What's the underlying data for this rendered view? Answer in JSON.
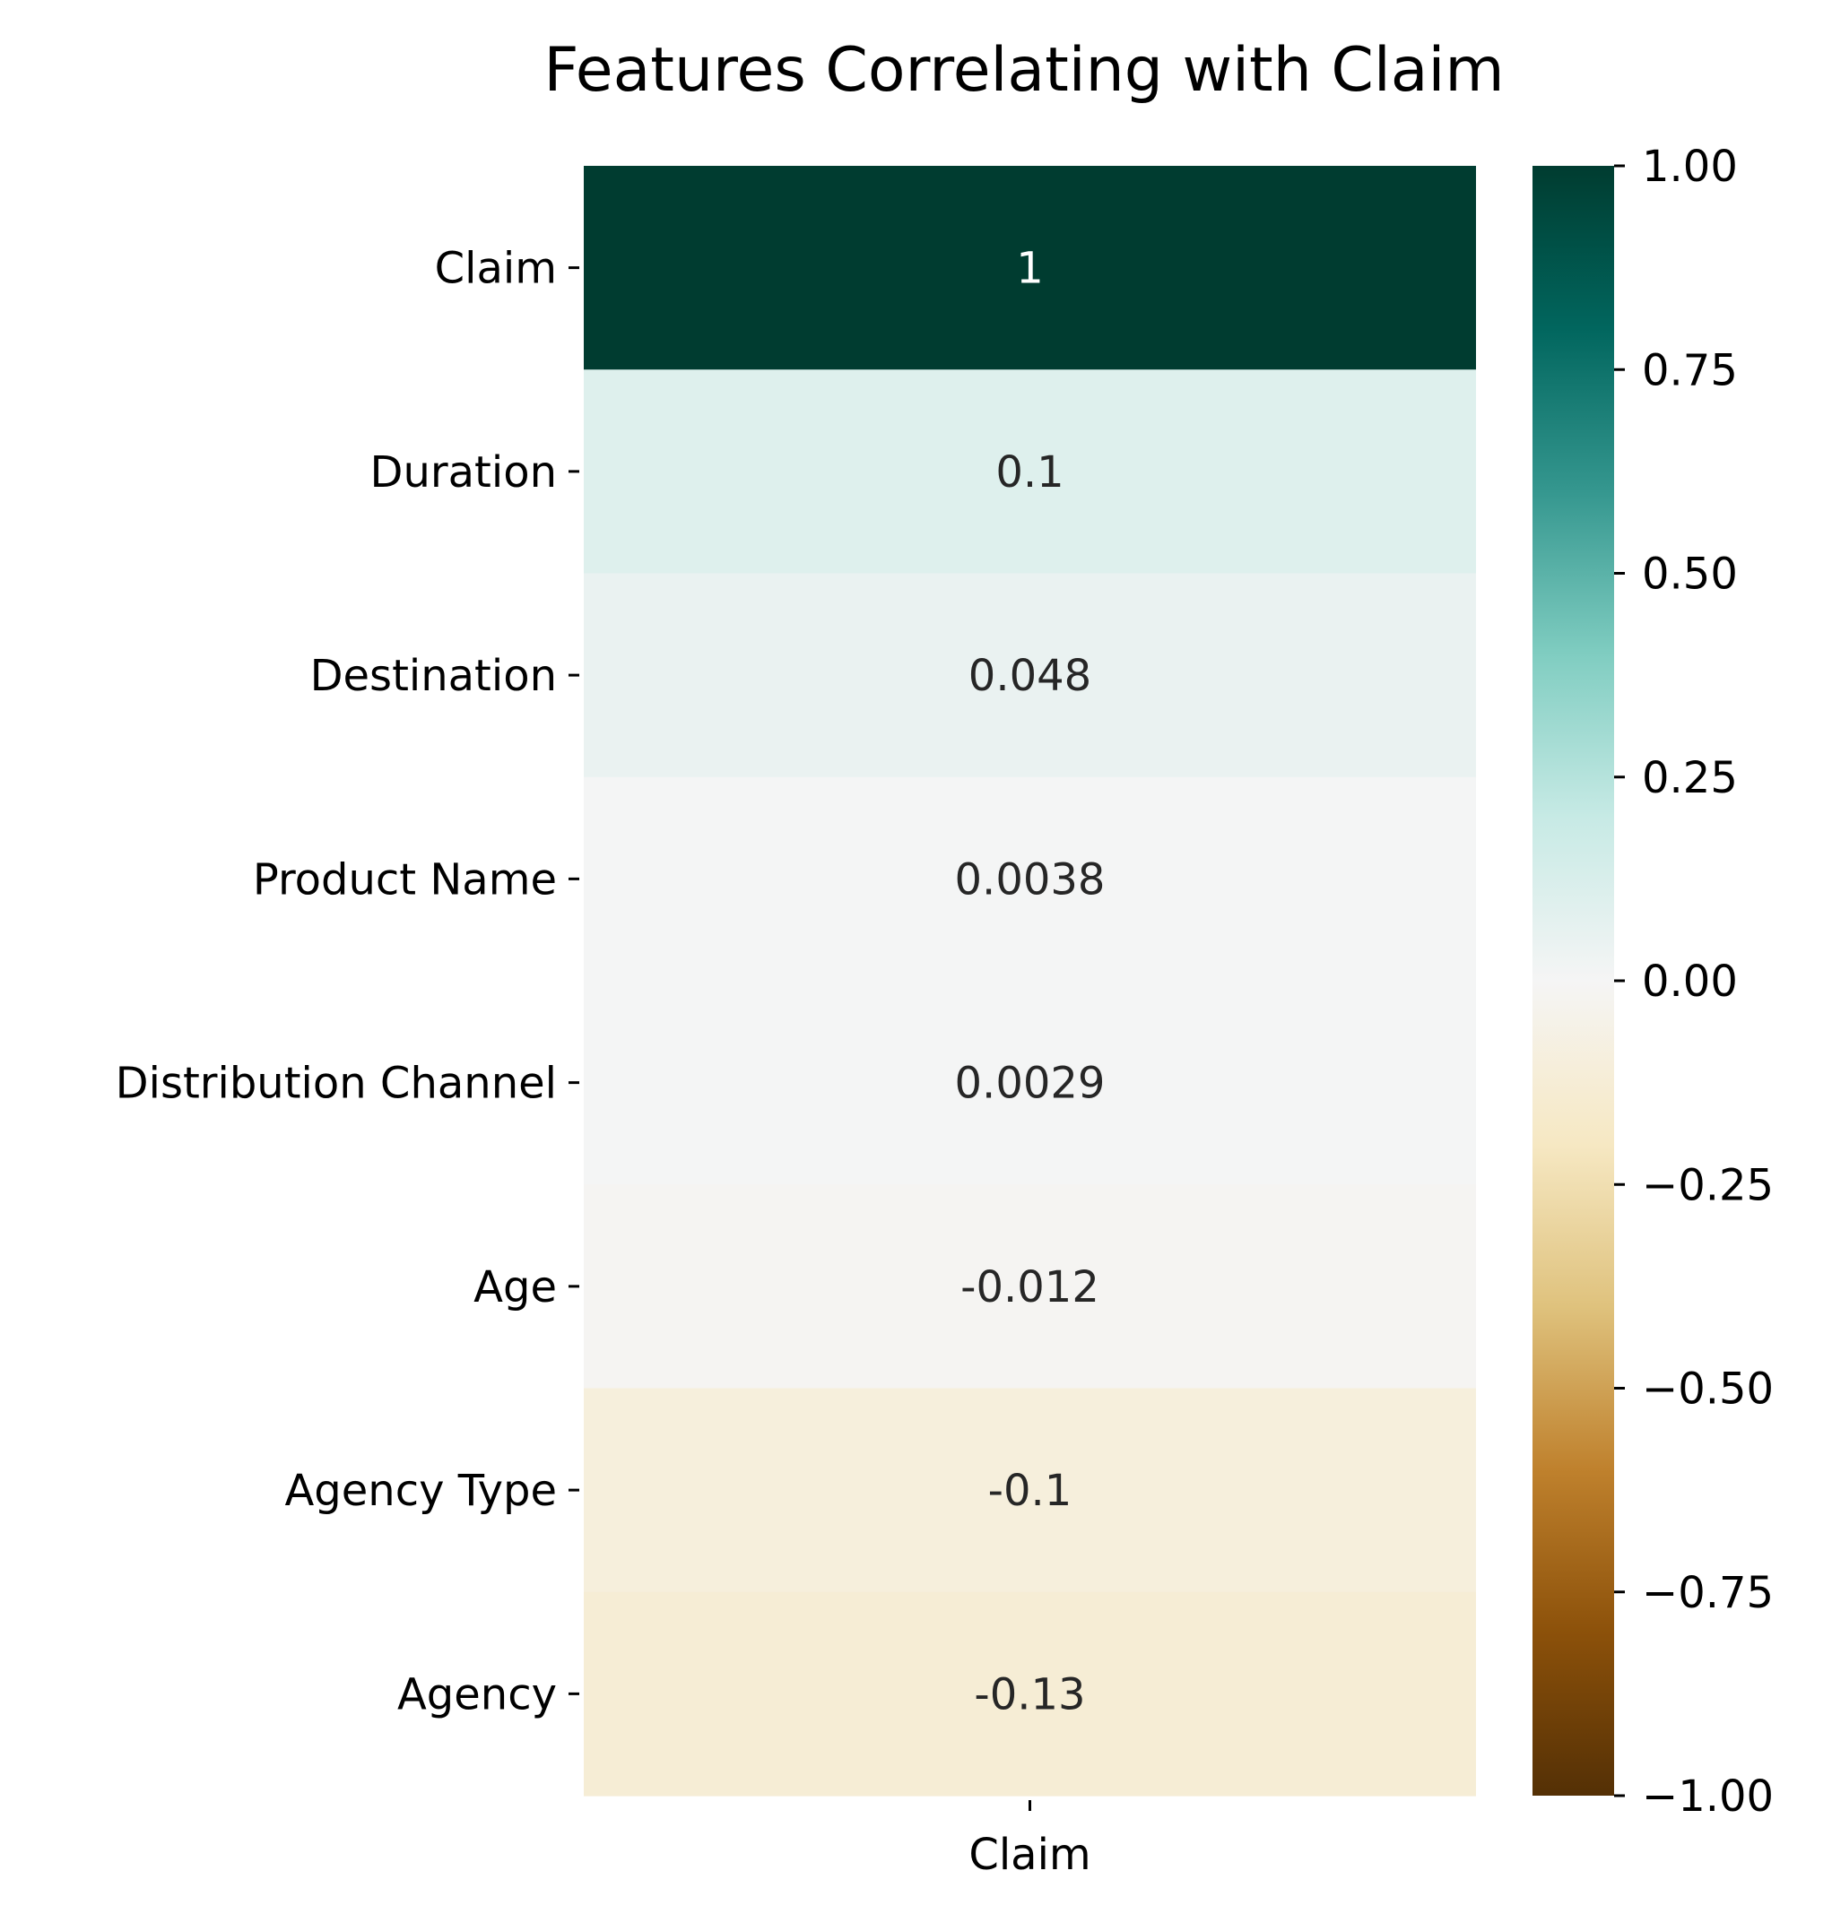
{
  "chart_data": {
    "type": "heatmap",
    "title": "Features Correlating with Claim",
    "rows": [
      "Claim",
      "Duration",
      "Destination",
      "Product Name",
      "Distribution Channel",
      "Age",
      "Agency Type",
      "Agency"
    ],
    "columns": [
      "Claim"
    ],
    "values": [
      1,
      0.1,
      0.048,
      0.0038,
      0.0029,
      -0.012,
      -0.1,
      -0.13
    ],
    "annotations": [
      "1",
      "0.1",
      "0.048",
      "0.0038",
      "0.0029",
      "-0.012",
      "-0.1",
      "-0.13"
    ],
    "colormap": "BrBG",
    "vmin": -1,
    "vmax": 1,
    "colorbar": {
      "ticks": [
        1,
        0.75,
        0.5,
        0.25,
        0,
        -0.25,
        -0.5,
        -0.75,
        -1
      ],
      "tick_labels": [
        "1.00",
        "0.75",
        "0.50",
        "0.25",
        "0.00",
        "−0.25",
        "−0.50",
        "−0.75",
        "−1.00"
      ]
    },
    "xlabel": "",
    "ylabel": ""
  }
}
